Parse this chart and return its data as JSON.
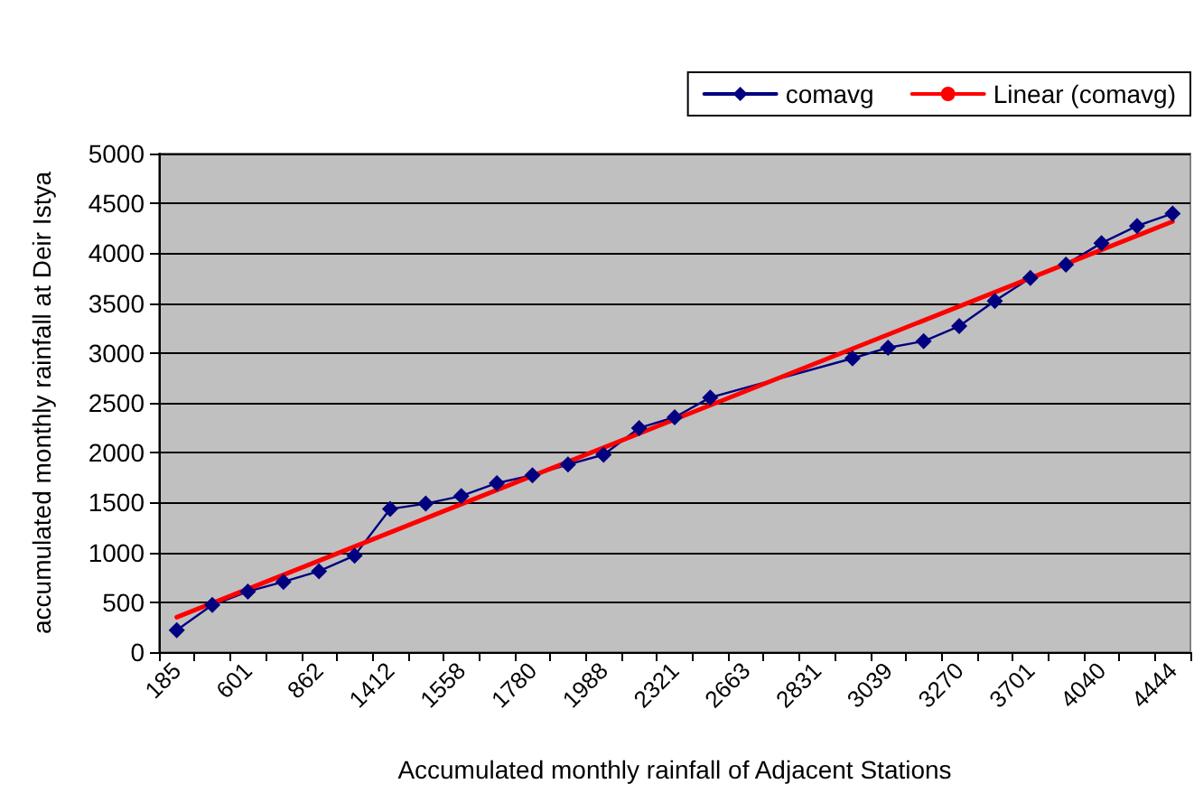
{
  "chart_data": {
    "type": "line",
    "xlabel": "Accumulated monthly rainfall of Adjacent Stations",
    "ylabel": "accumulated monthly rainfall at Deir Istya",
    "categories": [
      "185",
      null,
      "601",
      null,
      "862",
      null,
      "1412",
      null,
      "1558",
      null,
      "1780",
      null,
      "1988",
      null,
      "2321",
      null,
      "2663",
      null,
      "2831",
      null,
      "3039",
      null,
      "3270",
      null,
      "3701",
      null,
      "4040",
      null,
      "4444"
    ],
    "series": [
      {
        "name": "comavg",
        "color": "#000080",
        "marker": "diamond",
        "values": [
          220,
          473,
          608,
          705,
          811,
          968,
          1435,
          1489,
          1565,
          1694,
          1774,
          1882,
          1979,
          2247,
          2355,
          2553,
          null,
          null,
          null,
          2946,
          3053,
          3118,
          3269,
          3521,
          3753,
          3887,
          4102,
          4274,
          4398
        ]
      },
      {
        "name": "Linear (comavg)",
        "color": "#ff0000",
        "marker": "none",
        "values": [
          350,
          null,
          null,
          null,
          null,
          null,
          null,
          null,
          null,
          null,
          null,
          null,
          null,
          null,
          null,
          null,
          null,
          null,
          null,
          null,
          null,
          null,
          null,
          null,
          null,
          null,
          null,
          null,
          4318
        ]
      }
    ],
    "ylim": [
      0,
      5000
    ],
    "yticks": [
      0,
      500,
      1000,
      1500,
      2000,
      2500,
      3000,
      3500,
      4000,
      4500,
      5000
    ],
    "grid": "y",
    "legend": "top right"
  }
}
